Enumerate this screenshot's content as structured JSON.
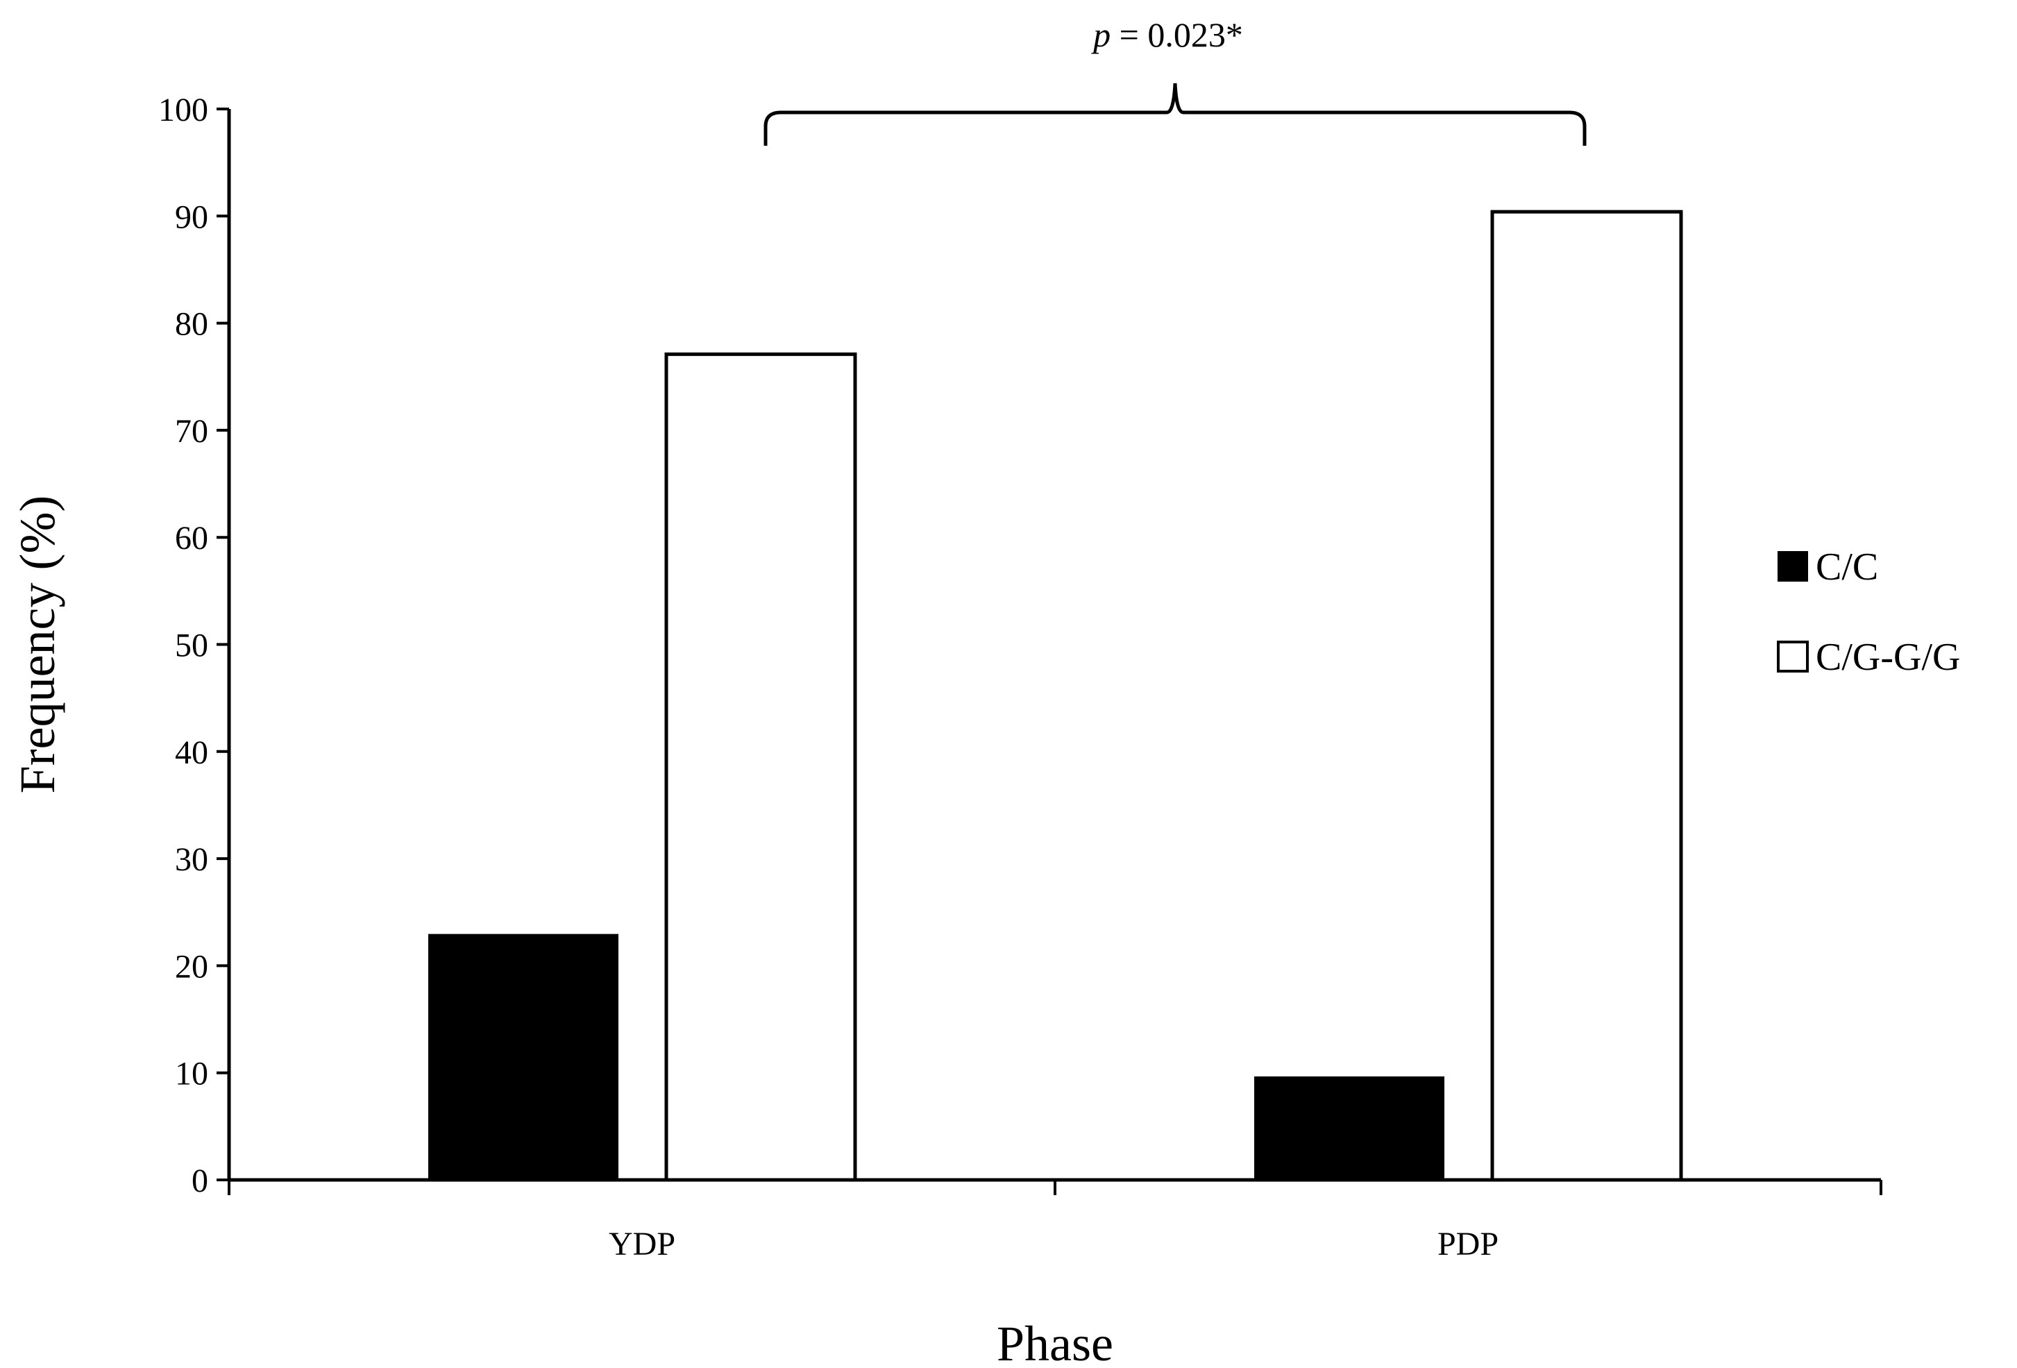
{
  "chart_data": {
    "type": "bar",
    "categories": [
      "YDP",
      "PDP"
    ],
    "series": [
      {
        "name": "C/C",
        "values": [
          22.9,
          9.6
        ],
        "color": "#000000"
      },
      {
        "name": "C/G-G/G",
        "values": [
          77.1,
          90.4
        ],
        "color": "#ffffff"
      }
    ],
    "xlabel": "Phase",
    "ylabel": "Frequency (%)",
    "ylim": [
      0,
      100
    ],
    "yticks": [
      0,
      10,
      20,
      30,
      40,
      50,
      60,
      70,
      80,
      90,
      100
    ],
    "grid": false,
    "legend_position": "right",
    "annotation": {
      "p_symbol": "p",
      "text": " = 0.023*",
      "spans": [
        "YDP",
        "PDP"
      ]
    }
  }
}
